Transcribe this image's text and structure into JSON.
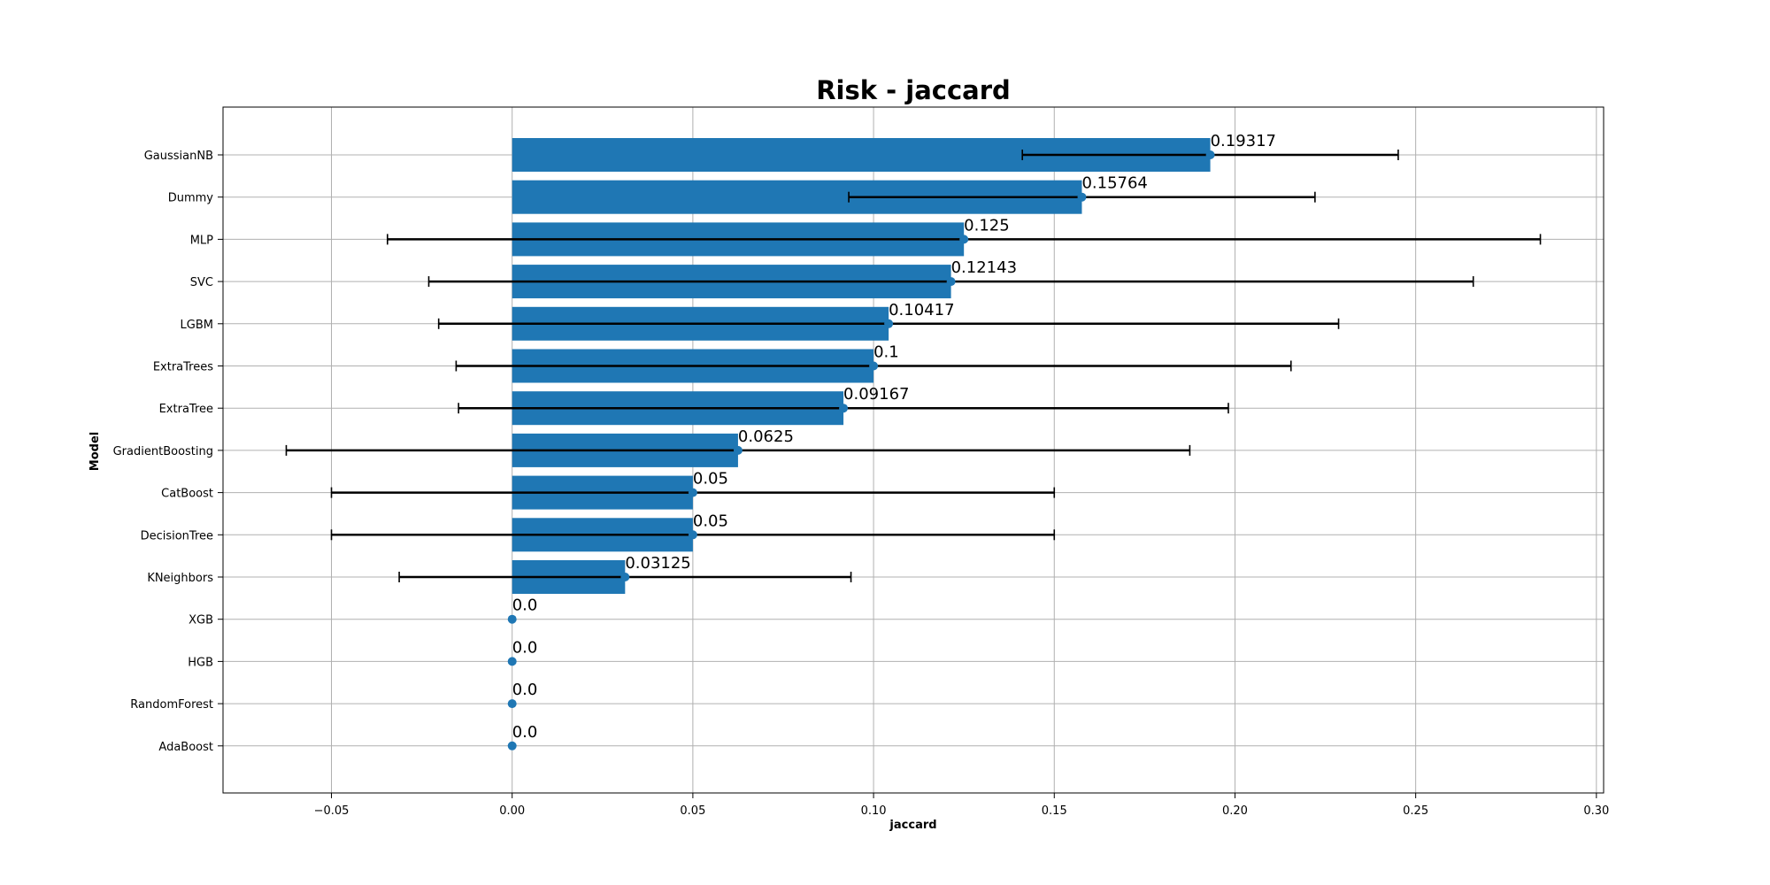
{
  "chart_data": {
    "type": "bar",
    "orientation": "horizontal",
    "title": "Risk - jaccard",
    "xlabel": "jaccard",
    "ylabel": "Model",
    "xlim": [
      -0.08,
      0.302
    ],
    "xticks": [
      -0.05,
      0.0,
      0.05,
      0.1,
      0.15,
      0.2,
      0.25,
      0.3
    ],
    "xtick_labels": [
      "−0.05",
      "0.00",
      "0.05",
      "0.10",
      "0.15",
      "0.20",
      "0.25",
      "0.30"
    ],
    "grid": true,
    "bar_color": "#1f77b4",
    "errorbar_color": "#000000",
    "categories": [
      "GaussianNB",
      "Dummy",
      "MLP",
      "SVC",
      "LGBM",
      "ExtraTrees",
      "ExtraTree",
      "GradientBoosting",
      "CatBoost",
      "DecisionTree",
      "KNeighbors",
      "XGB",
      "HGB",
      "RandomForest",
      "AdaBoost"
    ],
    "values": [
      0.19317,
      0.15764,
      0.125,
      0.12143,
      0.10417,
      0.1,
      0.09167,
      0.0625,
      0.05,
      0.05,
      0.03125,
      0.0,
      0.0,
      0.0,
      0.0
    ],
    "value_labels": [
      "0.19317",
      "0.15764",
      "0.125",
      "0.12143",
      "0.10417",
      "0.1",
      "0.09167",
      "0.0625",
      "0.05",
      "0.05",
      "0.03125",
      "0.0",
      "0.0",
      "0.0",
      "0.0"
    ],
    "errors": [
      0.052,
      0.0645,
      0.1595,
      0.1445,
      0.1245,
      0.1155,
      0.1065,
      0.125,
      0.1,
      0.1,
      0.0625,
      0,
      0,
      0,
      0
    ]
  }
}
